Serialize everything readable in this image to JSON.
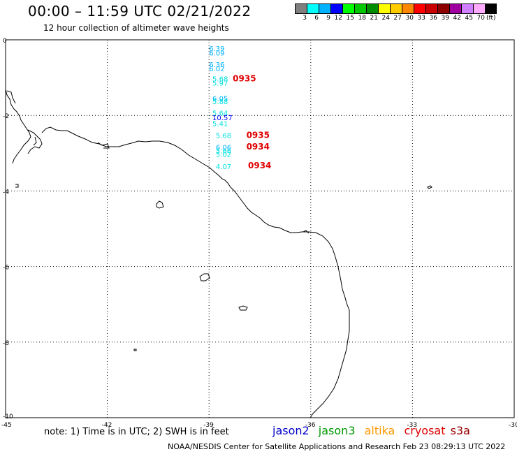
{
  "header": {
    "title": "00:00 – 11:59 UTC 02/21/2022",
    "subtitle": "12 hour collection of altimeter wave heights"
  },
  "colorbar": {
    "colors": [
      "#7f7f7f",
      "#00ffff",
      "#00b2ff",
      "#0000ff",
      "#00ff00",
      "#00c800",
      "#008c00",
      "#ffff00",
      "#ffcc00",
      "#ff8800",
      "#ff0000",
      "#c80000",
      "#8c0000",
      "#a000a0",
      "#d07fff",
      "#ffaaff",
      "#000000"
    ],
    "labels": [
      "3",
      "6",
      "9",
      "12",
      "15",
      "18",
      "21",
      "24",
      "27",
      "30",
      "33",
      "36",
      "39",
      "42",
      "45",
      "70",
      "(ft)"
    ]
  },
  "map": {
    "lon_labels": [
      "-45",
      "-42",
      "-39",
      "-36",
      "-33",
      "-30"
    ],
    "lat_labels": [
      "0",
      "-2",
      "-4",
      "-6",
      "-8",
      "-10"
    ],
    "lon_values": [
      -45,
      -42,
      -39,
      -36,
      -33,
      -30
    ],
    "lat_values": [
      0,
      -2,
      -4,
      -6,
      -8,
      -10
    ],
    "coastline_color": "#000000",
    "grid": true
  },
  "observations": [
    {
      "lon": -39.0,
      "lat": -0.3,
      "text": "6.39",
      "color": "#00b2ff"
    },
    {
      "lon": -39.0,
      "lat": -0.42,
      "text": "6.09",
      "color": "#00b2ff"
    },
    {
      "lon": -39.0,
      "lat": -0.72,
      "text": "6.36",
      "color": "#00b2ff"
    },
    {
      "lon": -39.0,
      "lat": -0.83,
      "text": "6.02",
      "color": "#00b2ff"
    },
    {
      "lon": -38.9,
      "lat": -1.1,
      "text": "5.68",
      "color": "#00e0e0"
    },
    {
      "lon": -38.9,
      "lat": -1.21,
      "text": "5.97",
      "color": "#00e0e0"
    },
    {
      "lon": -38.9,
      "lat": -1.62,
      "text": "6.05",
      "color": "#00b2ff"
    },
    {
      "lon": -38.9,
      "lat": -1.7,
      "text": "5.88",
      "color": "#00e0e0"
    },
    {
      "lon": -38.9,
      "lat": -2.01,
      "text": "5.64",
      "color": "#00e0e0"
    },
    {
      "lon": -38.9,
      "lat": -2.13,
      "text": "10.57",
      "color": "#0000ff"
    },
    {
      "lon": -38.9,
      "lat": -2.28,
      "text": "5.41",
      "color": "#00e0e0"
    },
    {
      "lon": -38.8,
      "lat": -2.6,
      "text": "5.68",
      "color": "#00e0e0"
    },
    {
      "lon": -38.8,
      "lat": -2.91,
      "text": "6.06",
      "color": "#00b2ff"
    },
    {
      "lon": -38.8,
      "lat": -3.0,
      "text": "5.66",
      "color": "#00e0e0"
    },
    {
      "lon": -38.8,
      "lat": -3.1,
      "text": "5.02",
      "color": "#00e0e0"
    },
    {
      "lon": -38.8,
      "lat": -3.42,
      "text": "4.07",
      "color": "#00e0e0"
    }
  ],
  "time_labels": [
    {
      "lon": -38.3,
      "lat": -1.1,
      "text": "0935",
      "color": "#e00000"
    },
    {
      "lon": -37.9,
      "lat": -2.6,
      "text": "0935",
      "color": "#e00000"
    },
    {
      "lon": -37.9,
      "lat": -2.9,
      "text": "0934",
      "color": "#e00000"
    },
    {
      "lon": -37.85,
      "lat": -3.4,
      "text": "0934",
      "color": "#e00000"
    }
  ],
  "note": "note:  1) Time is in UTC;  2) SWH is in feet",
  "legend": [
    {
      "label": "jason2",
      "color": "#0000cc"
    },
    {
      "label": "jason3",
      "color": "#009900"
    },
    {
      "label": "altika",
      "color": "#ff9900"
    },
    {
      "label": "cryosat",
      "color": "#dd0000"
    },
    {
      "label": "s3a",
      "color": "#990000"
    }
  ],
  "footer": "NOAA/NESDIS Center for Satellite Applications and Research    Feb 23 08:29:13 UTC 2022"
}
